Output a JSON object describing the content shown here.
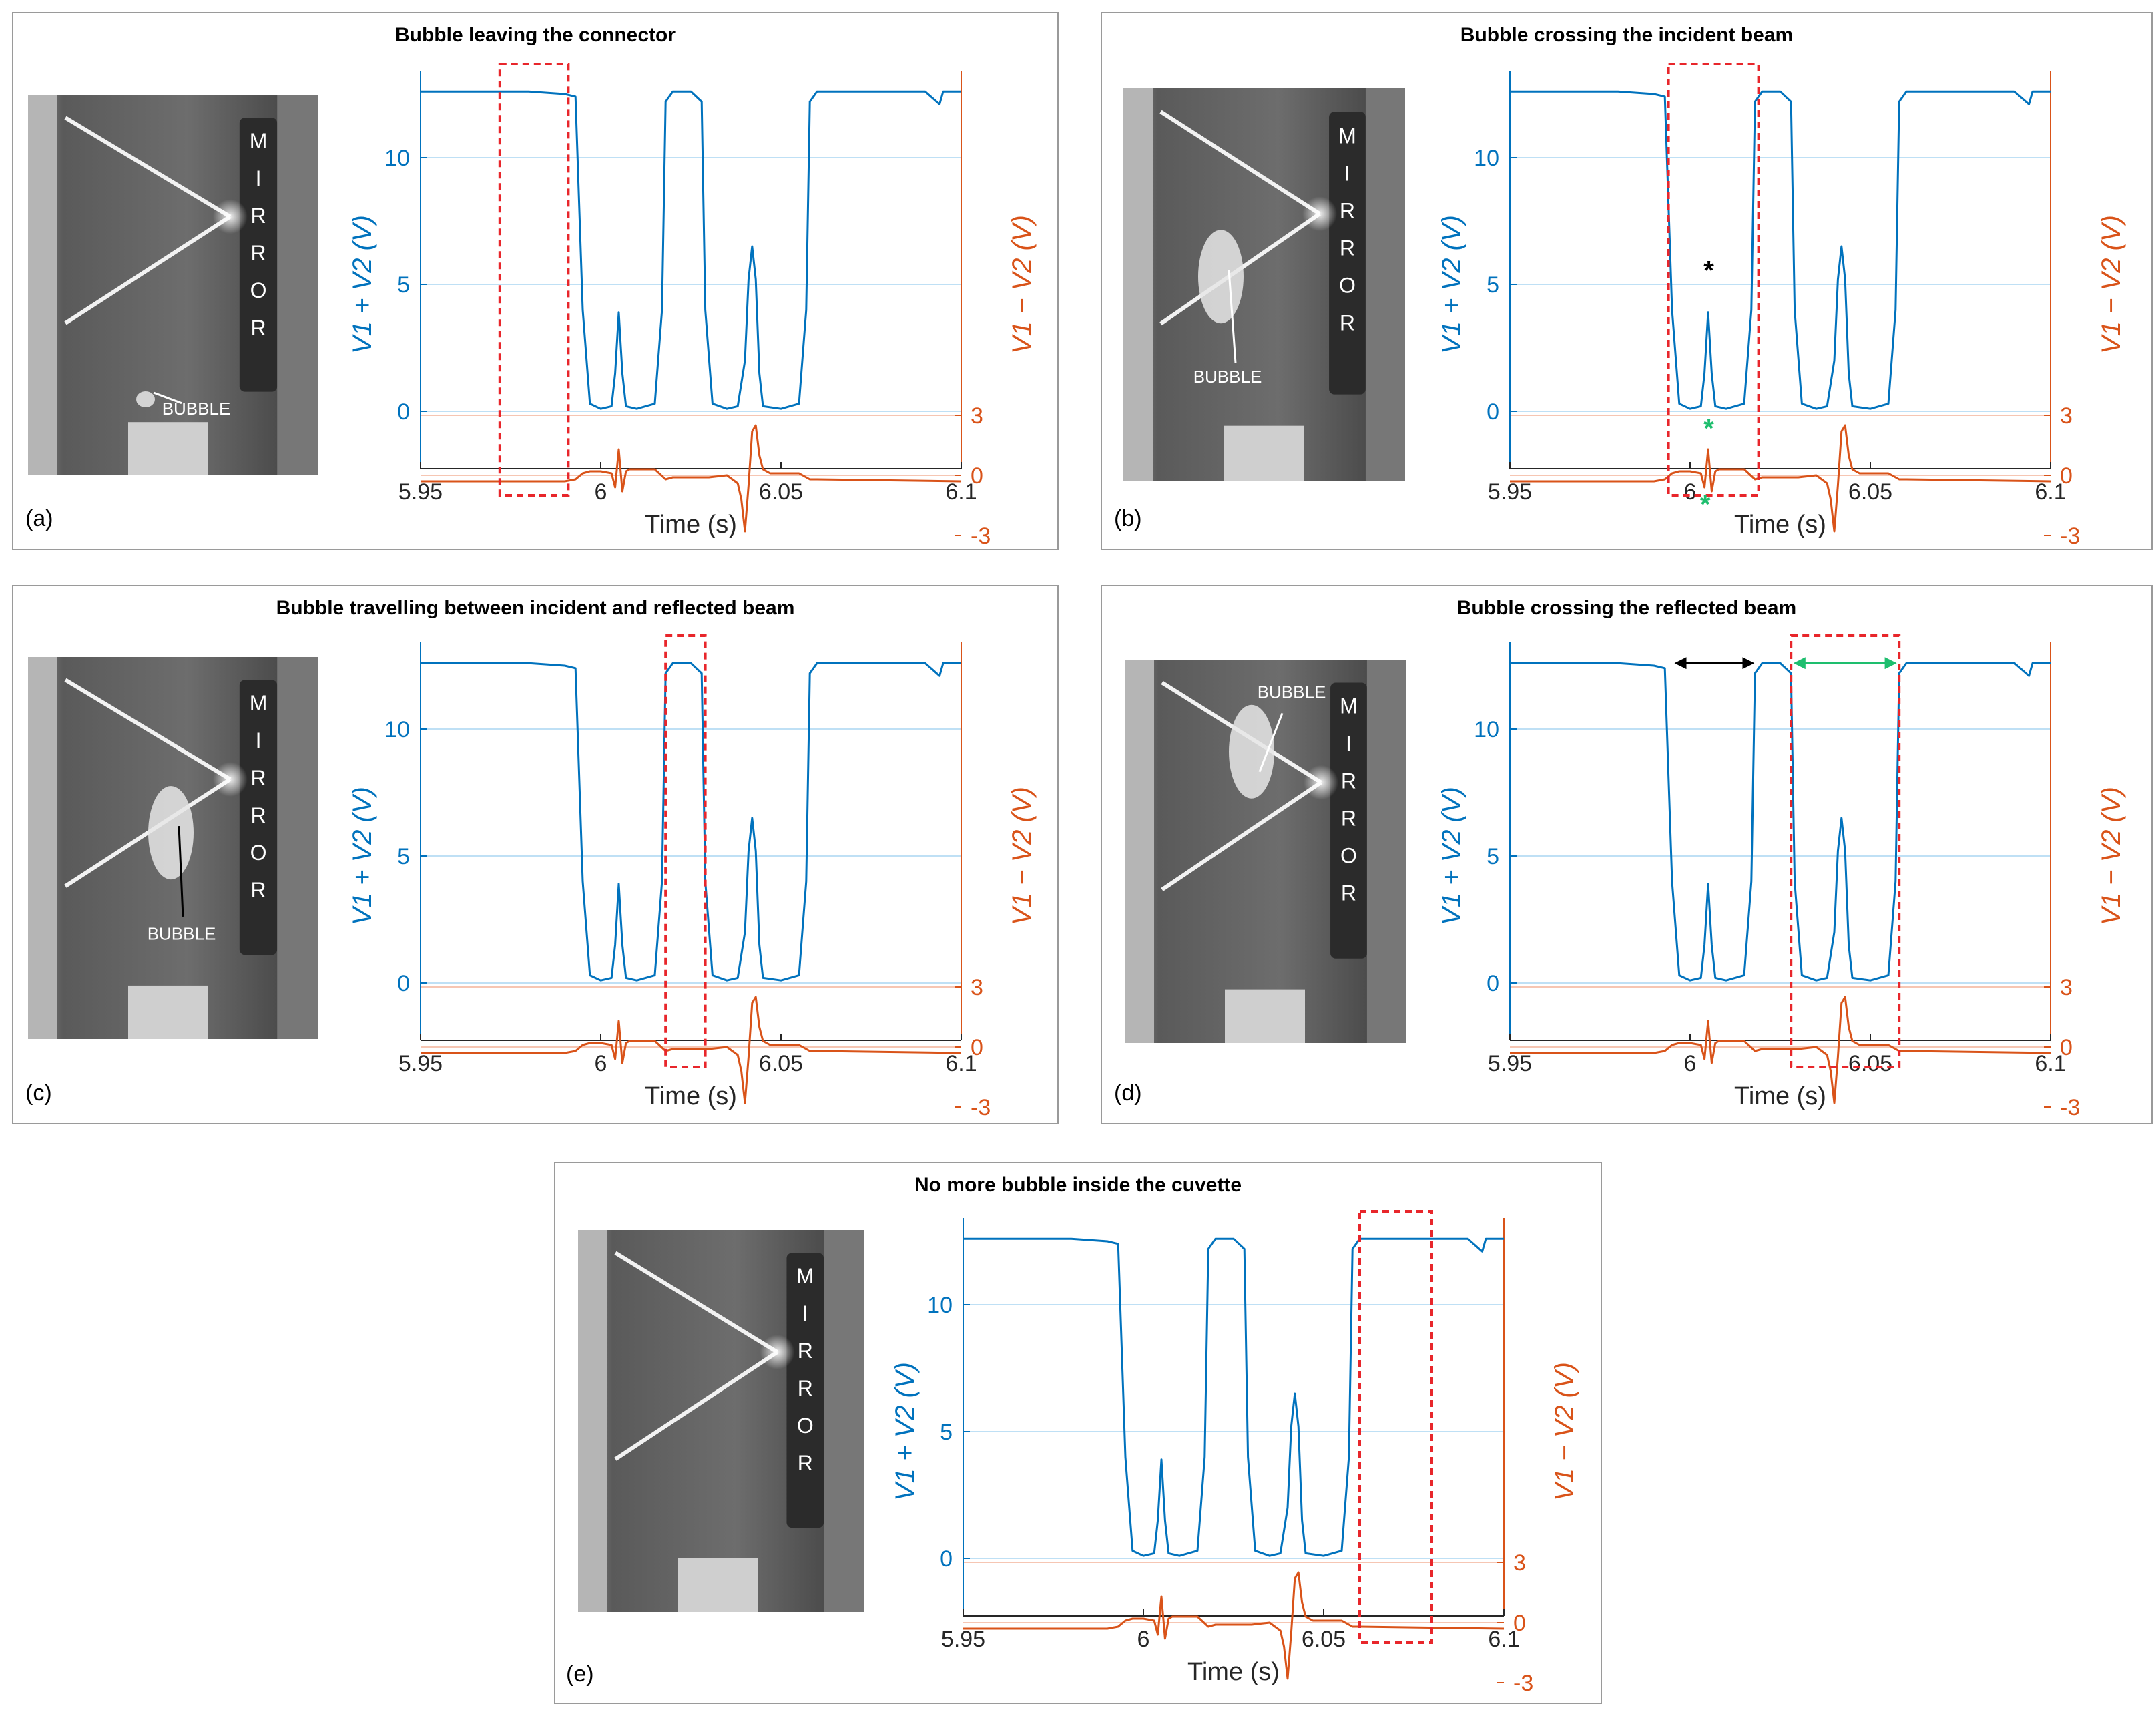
{
  "colors": {
    "sum_series": "#0072bd",
    "diff_series": "#d95319",
    "highlight_box": "#e8262b",
    "grid_blue": "#bfe0f5",
    "grid_red": "#f6c6b3",
    "star_black": "#000000",
    "star_green": "#1ebe6e",
    "arrow_black": "#000000",
    "arrow_green": "#1ebe6e"
  },
  "panels": [
    {
      "label": "(a)",
      "title": "Bubble leaving the connector",
      "photo": {
        "mirror_letters": [
          "M",
          "I",
          "R",
          "R",
          "O",
          "R"
        ],
        "bubble_label": "BUBBLE",
        "bubble_label_color": "#ffffff",
        "arrow_color": "#ffffff"
      },
      "highlight": [
        5.972,
        5.991
      ],
      "markers": "none"
    },
    {
      "label": "(b)",
      "title": "Bubble crossing the incident beam",
      "photo": {
        "mirror_letters": [
          "M",
          "I",
          "R",
          "R",
          "O",
          "R"
        ],
        "bubble_label": "BUBBLE",
        "bubble_label_color": "#ffffff",
        "arrow_color": "#ffffff"
      },
      "highlight": [
        5.994,
        6.019
      ],
      "markers": "stars"
    },
    {
      "label": "(c)",
      "title": "Bubble travelling between incident and reflected beam",
      "photo": {
        "mirror_letters": [
          "M",
          "I",
          "R",
          "R",
          "O",
          "R"
        ],
        "bubble_label": "BUBBLE",
        "bubble_label_color": "#ffffff",
        "arrow_color": "#000000"
      },
      "highlight": [
        6.018,
        6.029
      ],
      "markers": "none"
    },
    {
      "label": "(d)",
      "title": "Bubble crossing the reflected beam",
      "photo": {
        "mirror_letters": [
          "M",
          "I",
          "R",
          "R",
          "O",
          "R"
        ],
        "bubble_label": "BUBBLE",
        "bubble_label_color": "#ffffff",
        "arrow_color": "#ffffff"
      },
      "highlight": [
        6.028,
        6.058
      ],
      "markers": "arrows"
    },
    {
      "label": "(e)",
      "title": "No more bubble inside the cuvette",
      "photo": {
        "mirror_letters": [
          "M",
          "I",
          "R",
          "R",
          "O",
          "R"
        ],
        "bubble_label": "",
        "bubble_label_color": "#ffffff",
        "arrow_color": "#ffffff"
      },
      "highlight": [
        6.06,
        6.08
      ],
      "markers": "none"
    }
  ],
  "chart_data": {
    "type": "line",
    "xlabel": "Time (s)",
    "ylabel_left": "V1 + V2 (V)",
    "ylabel_right": "V1 − V2 (V)",
    "xlim": [
      5.95,
      6.1
    ],
    "xticks": [
      "5.95",
      "6",
      "6.05",
      "6.1"
    ],
    "left_ticks": [
      "10",
      "5",
      "0"
    ],
    "right_ticks": [
      "3",
      "0",
      "-3"
    ],
    "note": "Same signals shown in all five panels",
    "series": [
      {
        "name": "V1 + V2 (V)",
        "axis": "left",
        "x": [
          5.95,
          5.96,
          5.97,
          5.98,
          5.99,
          5.993,
          5.995,
          5.997,
          6.0,
          6.003,
          6.004,
          6.005,
          6.006,
          6.007,
          6.01,
          6.015,
          6.017,
          6.018,
          6.02,
          6.025,
          6.028,
          6.029,
          6.031,
          6.035,
          6.038,
          6.04,
          6.041,
          6.042,
          6.043,
          6.044,
          6.045,
          6.05,
          6.055,
          6.057,
          6.058,
          6.06,
          6.07,
          6.08,
          6.09,
          6.094,
          6.095,
          6.1
        ],
        "y": [
          12.6,
          12.6,
          12.6,
          12.6,
          12.5,
          12.4,
          4.0,
          0.3,
          0.1,
          0.2,
          1.5,
          3.9,
          1.5,
          0.2,
          0.1,
          0.3,
          4.0,
          12.2,
          12.6,
          12.6,
          12.2,
          4.0,
          0.3,
          0.1,
          0.2,
          2.0,
          5.2,
          6.5,
          5.2,
          1.5,
          0.2,
          0.1,
          0.3,
          4.0,
          12.2,
          12.6,
          12.6,
          12.6,
          12.6,
          12.1,
          12.6,
          12.6
        ]
      },
      {
        "name": "V1 − V2 (V)",
        "axis": "right",
        "x": [
          5.95,
          5.99,
          5.993,
          5.995,
          5.997,
          6.0,
          6.003,
          6.004,
          6.005,
          6.006,
          6.007,
          6.008,
          6.01,
          6.015,
          6.018,
          6.02,
          6.025,
          6.03,
          6.035,
          6.038,
          6.039,
          6.04,
          6.041,
          6.042,
          6.043,
          6.044,
          6.045,
          6.047,
          6.05,
          6.055,
          6.058,
          6.06,
          6.1
        ],
        "y": [
          -0.3,
          -0.3,
          -0.2,
          0.1,
          0.2,
          0.2,
          0.1,
          -0.6,
          1.3,
          -0.8,
          0.2,
          0.3,
          0.3,
          0.3,
          -0.2,
          -0.1,
          -0.1,
          -0.1,
          0.0,
          -0.4,
          -1.2,
          -2.8,
          -0.5,
          2.2,
          2.5,
          1.0,
          0.3,
          0.1,
          0.1,
          0.1,
          -0.2,
          -0.2,
          -0.3
        ]
      }
    ]
  }
}
